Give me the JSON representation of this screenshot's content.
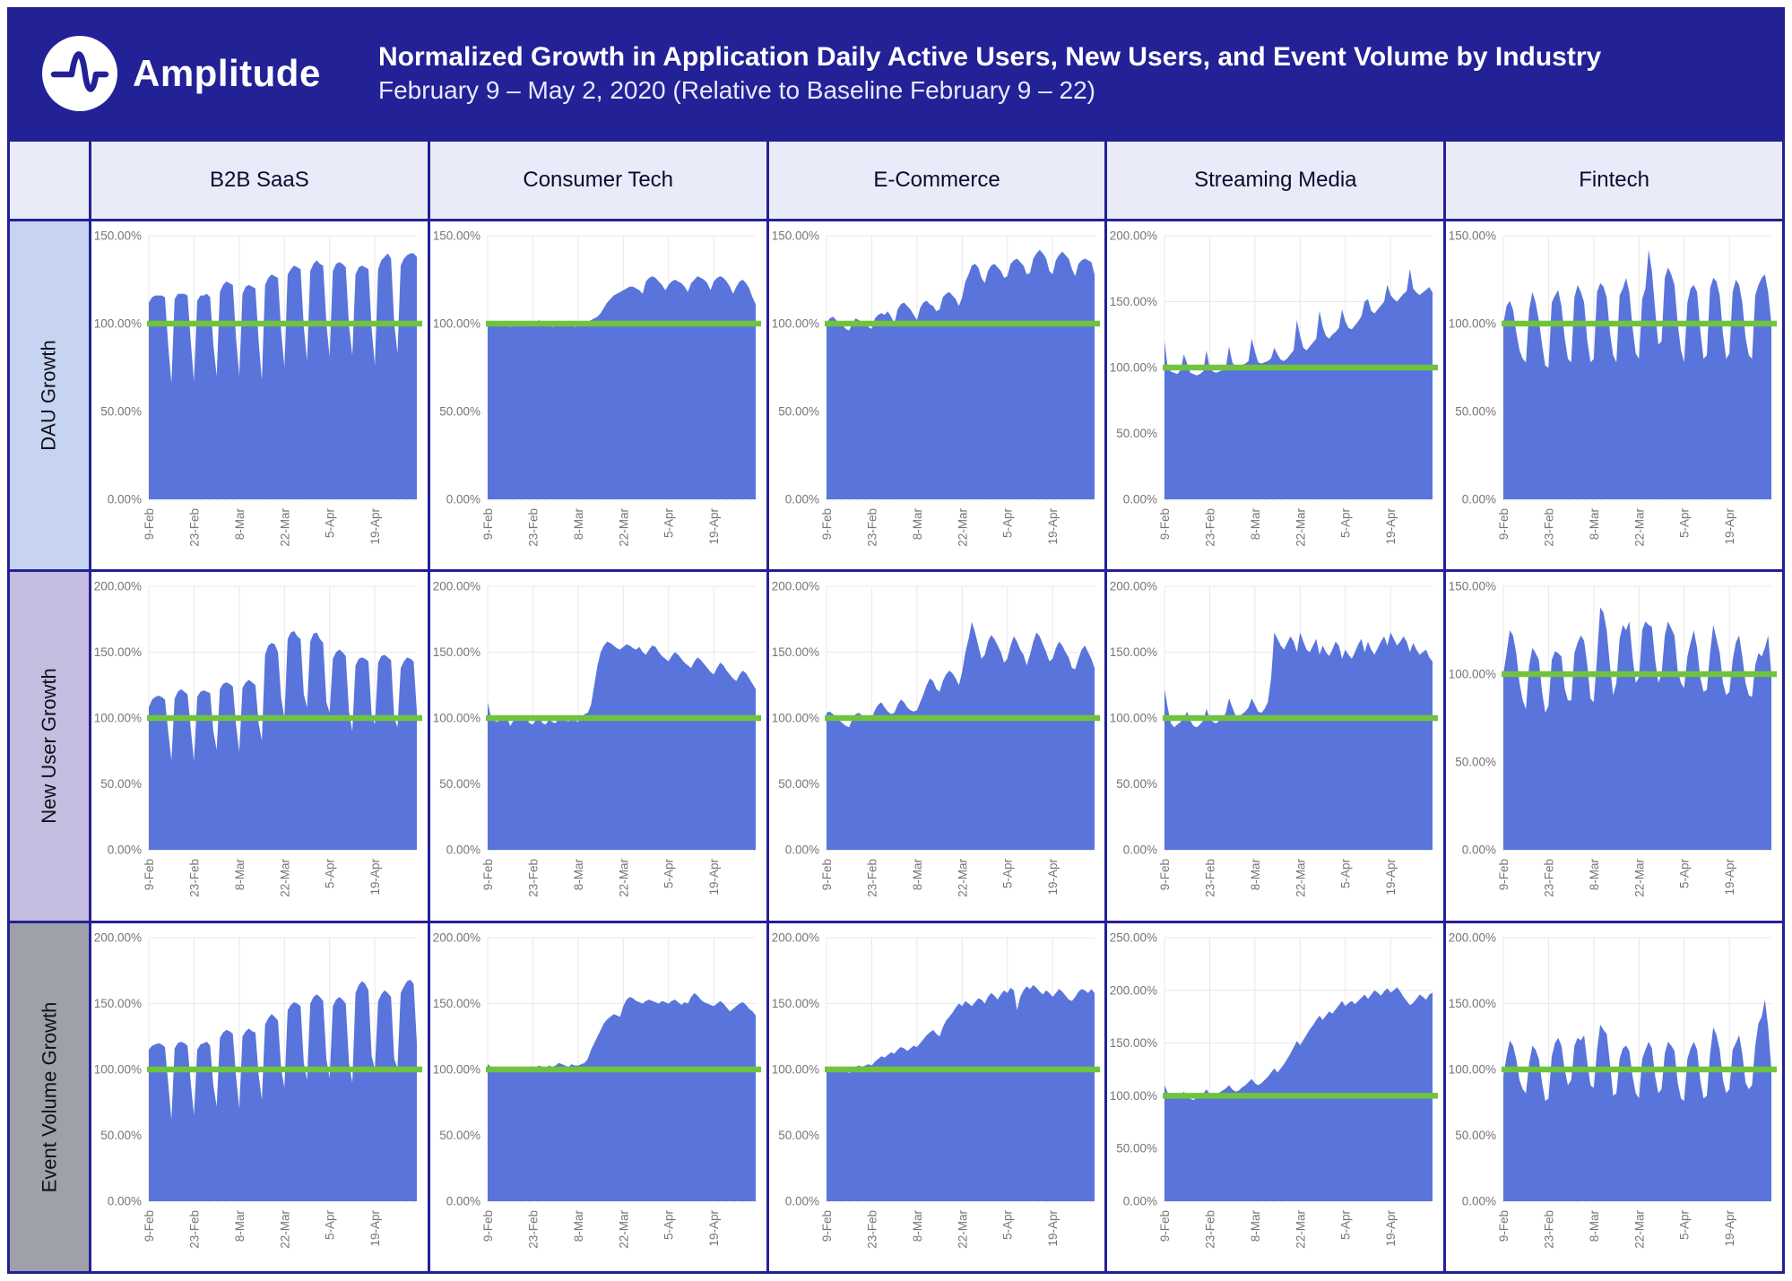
{
  "header": {
    "logo": "amplitude-logo",
    "wordmark": "Amplitude",
    "title": "Normalized Growth in Application Daily Active Users, New Users, and Event Volume by Industry",
    "subtitle": "February 9 – May 2, 2020 (Relative to Baseline February 9 – 22)"
  },
  "columns": [
    "B2B SaaS",
    "Consumer Tech",
    "E-Commerce",
    "Streaming Media",
    "Fintech"
  ],
  "rows": [
    "DAU Growth",
    "New User Growth",
    "Event Volume Growth"
  ],
  "colors": {
    "header_bg": "#232196",
    "grid_border": "#232196",
    "col_header_bg": "#E9EBF9",
    "row_bgs": [
      "#C6D3F1",
      "#C4BDDF",
      "#9EA1A9"
    ],
    "area_blue": "#5975DB",
    "baseline_green": "#70C43D",
    "gridline": "#E8E8E8",
    "tick_text": "#757575",
    "zero_line": "#9a9a9a"
  },
  "axis": {
    "x_tick_labels": [
      "9-Feb",
      "23-Feb",
      "8-Mar",
      "22-Mar",
      "5-Apr",
      "19-Apr"
    ],
    "x_tick_day_indices": [
      0,
      14,
      28,
      42,
      56,
      70
    ],
    "y_tick_step": 50,
    "y_tick_format": "0.00%",
    "baseline_value": 100
  },
  "chart_data": [
    {
      "type": "area",
      "metric": "DAU Growth",
      "industry": "B2B SaaS",
      "ymax": 150,
      "baseline": 100,
      "values": [
        112,
        115,
        116,
        116,
        116,
        115,
        88,
        66,
        114,
        117,
        117,
        117,
        116,
        90,
        67,
        113,
        116,
        116,
        117,
        115,
        88,
        70,
        118,
        122,
        124,
        123,
        122,
        92,
        70,
        117,
        121,
        122,
        121,
        120,
        90,
        68,
        122,
        126,
        128,
        127,
        126,
        95,
        75,
        128,
        131,
        133,
        132,
        131,
        98,
        79,
        130,
        134,
        136,
        134,
        133,
        100,
        81,
        130,
        134,
        135,
        134,
        132,
        99,
        82,
        128,
        132,
        133,
        132,
        131,
        97,
        76,
        131,
        136,
        138,
        140,
        137,
        100,
        83,
        133,
        137,
        139,
        140,
        140,
        138
      ]
    },
    {
      "type": "area",
      "metric": "DAU Growth",
      "industry": "Consumer Tech",
      "ymax": 150,
      "baseline": 100,
      "values": [
        100,
        101,
        100,
        99,
        100,
        101,
        99,
        98,
        100,
        101,
        100,
        99,
        100,
        100,
        99,
        101,
        102,
        100,
        99,
        100,
        98,
        99,
        100,
        101,
        100,
        100,
        99,
        98,
        99,
        100,
        100,
        101,
        102,
        103,
        104,
        106,
        109,
        112,
        114,
        116,
        117,
        118,
        119,
        120,
        121,
        121,
        120,
        119,
        117,
        124,
        126,
        127,
        126,
        124,
        122,
        119,
        122,
        124,
        125,
        124,
        123,
        121,
        118,
        123,
        125,
        127,
        126,
        125,
        123,
        119,
        124,
        126,
        127,
        126,
        124,
        121,
        117,
        121,
        124,
        125,
        123,
        120,
        115,
        111
      ]
    },
    {
      "type": "area",
      "metric": "DAU Growth",
      "industry": "E-Commerce",
      "ymax": 150,
      "baseline": 100,
      "values": [
        100,
        103,
        104,
        102,
        100,
        99,
        97,
        96,
        100,
        103,
        102,
        101,
        100,
        98,
        97,
        103,
        105,
        106,
        105,
        107,
        104,
        100,
        108,
        111,
        112,
        110,
        108,
        105,
        102,
        109,
        112,
        113,
        111,
        110,
        107,
        108,
        115,
        117,
        118,
        116,
        114,
        110,
        115,
        124,
        128,
        133,
        134,
        132,
        126,
        123,
        130,
        133,
        134,
        132,
        130,
        126,
        127,
        134,
        136,
        137,
        135,
        133,
        128,
        129,
        137,
        140,
        142,
        140,
        137,
        130,
        128,
        136,
        139,
        141,
        139,
        137,
        131,
        127,
        134,
        136,
        137,
        136,
        135,
        128
      ]
    },
    {
      "type": "area",
      "metric": "DAU Growth",
      "industry": "Streaming Media",
      "ymax": 200,
      "baseline": 100,
      "values": [
        120,
        100,
        97,
        96,
        95,
        98,
        110,
        103,
        96,
        95,
        94,
        95,
        97,
        113,
        100,
        97,
        96,
        97,
        98,
        100,
        116,
        104,
        100,
        101,
        102,
        103,
        105,
        122,
        112,
        104,
        103,
        104,
        105,
        107,
        115,
        110,
        106,
        105,
        107,
        110,
        113,
        136,
        124,
        115,
        113,
        116,
        119,
        122,
        143,
        131,
        124,
        122,
        125,
        127,
        130,
        144,
        135,
        130,
        129,
        132,
        135,
        139,
        150,
        152,
        143,
        141,
        144,
        147,
        150,
        163,
        155,
        152,
        150,
        153,
        156,
        158,
        175,
        160,
        157,
        155,
        157,
        159,
        161,
        157
      ]
    },
    {
      "type": "area",
      "metric": "DAU Growth",
      "industry": "Fintech",
      "ymax": 150,
      "baseline": 100,
      "values": [
        100,
        110,
        113,
        108,
        95,
        85,
        80,
        78,
        108,
        118,
        112,
        102,
        88,
        76,
        75,
        112,
        116,
        119,
        110,
        92,
        80,
        78,
        115,
        122,
        118,
        112,
        90,
        78,
        80,
        118,
        123,
        121,
        115,
        95,
        82,
        78,
        116,
        120,
        126,
        118,
        98,
        83,
        80,
        114,
        120,
        142,
        130,
        108,
        88,
        90,
        126,
        132,
        128,
        122,
        100,
        85,
        78,
        112,
        120,
        122,
        118,
        96,
        80,
        82,
        120,
        126,
        124,
        116,
        94,
        80,
        83,
        118,
        125,
        122,
        112,
        92,
        82,
        80,
        116,
        122,
        126,
        128,
        118,
        100
      ]
    },
    {
      "type": "area",
      "metric": "New User Growth",
      "industry": "B2B SaaS",
      "ymax": 200,
      "baseline": 100,
      "values": [
        108,
        114,
        116,
        117,
        116,
        114,
        90,
        68,
        115,
        120,
        122,
        120,
        118,
        92,
        67,
        116,
        120,
        121,
        120,
        119,
        90,
        76,
        122,
        126,
        127,
        126,
        124,
        95,
        74,
        123,
        127,
        129,
        127,
        125,
        96,
        83,
        148,
        155,
        157,
        156,
        150,
        115,
        100,
        160,
        165,
        166,
        162,
        160,
        118,
        108,
        158,
        164,
        165,
        160,
        157,
        112,
        104,
        145,
        150,
        152,
        150,
        147,
        105,
        90,
        140,
        145,
        146,
        145,
        143,
        102,
        95,
        142,
        147,
        148,
        146,
        144,
        100,
        93,
        138,
        143,
        146,
        145,
        143,
        105
      ]
    },
    {
      "type": "area",
      "metric": "New User Growth",
      "industry": "Consumer Tech",
      "ymax": 200,
      "baseline": 100,
      "values": [
        112,
        101,
        98,
        97,
        99,
        101,
        100,
        94,
        98,
        100,
        99,
        98,
        100,
        96,
        95,
        99,
        101,
        96,
        95,
        99,
        97,
        96,
        100,
        102,
        99,
        97,
        101,
        98,
        97,
        100,
        103,
        104,
        110,
        125,
        140,
        150,
        155,
        158,
        157,
        155,
        153,
        152,
        154,
        156,
        155,
        153,
        152,
        154,
        150,
        148,
        152,
        155,
        154,
        150,
        147,
        145,
        143,
        147,
        150,
        148,
        145,
        142,
        140,
        138,
        143,
        146,
        144,
        141,
        138,
        135,
        133,
        138,
        142,
        140,
        136,
        133,
        130,
        128,
        133,
        136,
        134,
        130,
        126,
        122
      ]
    },
    {
      "type": "area",
      "metric": "New User Growth",
      "industry": "E-Commerce",
      "ymax": 200,
      "baseline": 100,
      "values": [
        104,
        105,
        103,
        100,
        98,
        96,
        94,
        93,
        99,
        103,
        104,
        102,
        100,
        98,
        100,
        106,
        110,
        112,
        108,
        105,
        103,
        104,
        110,
        114,
        112,
        108,
        106,
        105,
        106,
        112,
        118,
        125,
        130,
        128,
        122,
        120,
        128,
        133,
        136,
        134,
        130,
        125,
        135,
        150,
        160,
        173,
        165,
        155,
        145,
        148,
        158,
        163,
        160,
        155,
        150,
        142,
        145,
        155,
        162,
        158,
        152,
        148,
        140,
        148,
        158,
        165,
        162,
        156,
        150,
        143,
        145,
        153,
        158,
        155,
        150,
        146,
        138,
        137,
        145,
        152,
        155,
        150,
        145,
        138
      ]
    },
    {
      "type": "area",
      "metric": "New User Growth",
      "industry": "Streaming Media",
      "ymax": 200,
      "baseline": 100,
      "values": [
        122,
        108,
        96,
        93,
        95,
        97,
        100,
        105,
        98,
        94,
        93,
        95,
        98,
        107,
        100,
        97,
        96,
        98,
        100,
        104,
        115,
        108,
        102,
        101,
        103,
        105,
        108,
        115,
        110,
        105,
        104,
        107,
        112,
        130,
        165,
        160,
        155,
        152,
        157,
        162,
        158,
        150,
        165,
        158,
        152,
        150,
        155,
        160,
        148,
        155,
        150,
        147,
        152,
        158,
        155,
        145,
        152,
        148,
        145,
        150,
        156,
        160,
        150,
        158,
        152,
        148,
        153,
        158,
        162,
        155,
        165,
        160,
        155,
        158,
        162,
        158,
        150,
        157,
        152,
        148,
        150,
        152,
        146,
        143
      ]
    },
    {
      "type": "area",
      "metric": "New User Growth",
      "industry": "Fintech",
      "ymax": 150,
      "baseline": 100,
      "values": [
        100,
        112,
        125,
        122,
        112,
        95,
        85,
        80,
        105,
        115,
        112,
        108,
        90,
        78,
        82,
        108,
        113,
        112,
        110,
        92,
        85,
        85,
        112,
        118,
        122,
        119,
        105,
        86,
        84,
        110,
        138,
        135,
        125,
        105,
        88,
        95,
        120,
        128,
        125,
        130,
        110,
        95,
        98,
        125,
        130,
        128,
        127,
        108,
        95,
        100,
        122,
        130,
        126,
        122,
        102,
        95,
        92,
        110,
        118,
        125,
        115,
        98,
        90,
        91,
        112,
        128,
        120,
        112,
        95,
        88,
        90,
        108,
        118,
        122,
        110,
        95,
        88,
        87,
        105,
        112,
        110,
        115,
        122,
        100
      ]
    },
    {
      "type": "area",
      "metric": "Event Volume Growth",
      "industry": "B2B SaaS",
      "ymax": 200,
      "baseline": 100,
      "values": [
        115,
        118,
        119,
        120,
        119,
        117,
        90,
        62,
        116,
        120,
        121,
        120,
        118,
        90,
        65,
        115,
        119,
        120,
        121,
        118,
        88,
        72,
        124,
        128,
        130,
        129,
        127,
        95,
        70,
        125,
        129,
        131,
        129,
        128,
        96,
        77,
        134,
        139,
        142,
        140,
        137,
        100,
        86,
        145,
        149,
        151,
        150,
        148,
        105,
        92,
        150,
        155,
        157,
        155,
        152,
        108,
        93,
        148,
        153,
        155,
        153,
        150,
        105,
        90,
        158,
        164,
        167,
        165,
        160,
        110,
        100,
        152,
        157,
        160,
        158,
        155,
        108,
        101,
        158,
        163,
        167,
        168,
        165,
        120
      ]
    },
    {
      "type": "area",
      "metric": "Event Volume Growth",
      "industry": "Consumer Tech",
      "ymax": 200,
      "baseline": 100,
      "values": [
        104,
        102,
        100,
        99,
        100,
        101,
        100,
        98,
        100,
        101,
        100,
        99,
        101,
        100,
        100,
        102,
        103,
        102,
        101,
        103,
        102,
        103,
        105,
        104,
        103,
        102,
        104,
        103,
        103,
        104,
        105,
        108,
        115,
        120,
        125,
        130,
        135,
        138,
        140,
        142,
        141,
        140,
        148,
        153,
        155,
        154,
        152,
        151,
        150,
        152,
        153,
        152,
        151,
        150,
        152,
        151,
        150,
        152,
        153,
        151,
        149,
        151,
        150,
        155,
        158,
        156,
        153,
        151,
        150,
        149,
        148,
        150,
        152,
        150,
        147,
        144,
        146,
        148,
        150,
        151,
        149,
        146,
        144,
        141
      ]
    },
    {
      "type": "area",
      "metric": "Event Volume Growth",
      "industry": "E-Commerce",
      "ymax": 200,
      "baseline": 100,
      "values": [
        100,
        101,
        100,
        99,
        98,
        99,
        100,
        97,
        100,
        102,
        103,
        102,
        103,
        104,
        103,
        106,
        108,
        110,
        109,
        111,
        113,
        112,
        115,
        117,
        116,
        114,
        116,
        118,
        117,
        120,
        123,
        126,
        128,
        130,
        127,
        125,
        132,
        137,
        140,
        143,
        147,
        150,
        148,
        152,
        150,
        148,
        151,
        154,
        153,
        150,
        155,
        158,
        156,
        153,
        157,
        160,
        158,
        162,
        160,
        145,
        155,
        160,
        163,
        161,
        164,
        162,
        159,
        157,
        160,
        158,
        155,
        158,
        161,
        159,
        156,
        153,
        152,
        155,
        159,
        161,
        160,
        158,
        161,
        158
      ]
    },
    {
      "type": "area",
      "metric": "Event Volume Growth",
      "industry": "Streaming Media",
      "ymax": 250,
      "baseline": 100,
      "values": [
        110,
        103,
        99,
        97,
        98,
        100,
        104,
        100,
        97,
        96,
        98,
        100,
        102,
        106,
        102,
        100,
        101,
        103,
        105,
        107,
        110,
        106,
        104,
        105,
        108,
        110,
        113,
        116,
        112,
        110,
        112,
        115,
        118,
        122,
        126,
        122,
        126,
        130,
        135,
        140,
        146,
        152,
        148,
        153,
        158,
        163,
        167,
        172,
        176,
        172,
        176,
        180,
        178,
        182,
        186,
        190,
        185,
        188,
        190,
        187,
        190,
        193,
        196,
        192,
        196,
        200,
        198,
        195,
        199,
        202,
        198,
        200,
        203,
        199,
        194,
        190,
        186,
        188,
        192,
        196,
        194,
        191,
        196,
        198
      ]
    },
    {
      "type": "area",
      "metric": "Event Volume Growth",
      "industry": "Fintech",
      "ymax": 200,
      "baseline": 100,
      "values": [
        95,
        110,
        122,
        118,
        108,
        92,
        85,
        82,
        105,
        118,
        115,
        108,
        90,
        76,
        78,
        110,
        120,
        124,
        118,
        100,
        88,
        92,
        118,
        124,
        122,
        126,
        105,
        88,
        86,
        115,
        134,
        130,
        127,
        105,
        80,
        82,
        108,
        116,
        118,
        114,
        95,
        82,
        78,
        108,
        115,
        121,
        116,
        95,
        82,
        85,
        112,
        121,
        118,
        114,
        90,
        78,
        76,
        108,
        116,
        121,
        115,
        92,
        78,
        80,
        112,
        132,
        126,
        115,
        92,
        82,
        85,
        115,
        120,
        126,
        112,
        90,
        85,
        88,
        118,
        135,
        140,
        153,
        132,
        100
      ]
    }
  ]
}
